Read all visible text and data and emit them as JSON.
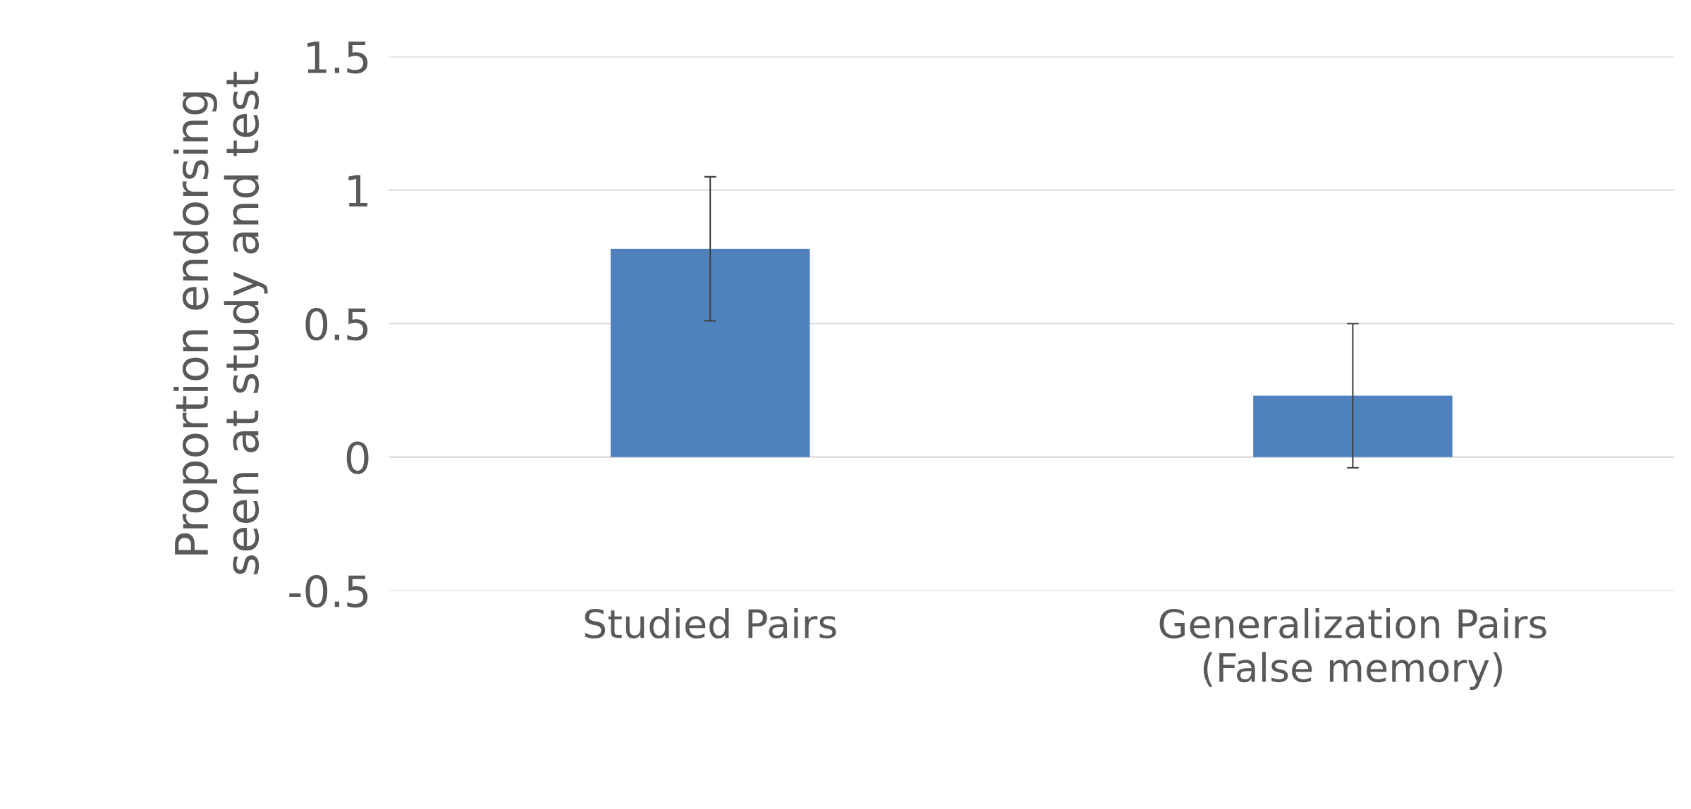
{
  "chart_data": {
    "type": "bar",
    "ylabel": "Proportion endorsing\nseen at study and test",
    "categories": [
      "Studied Pairs",
      "Generalization Pairs\n(False memory)"
    ],
    "values": [
      0.78,
      0.23
    ],
    "errors": [
      0.27,
      0.27
    ],
    "color": "#4f81bd",
    "ylim": [
      -0.5,
      1.5
    ],
    "yticks": [
      -0.5,
      0,
      0.5,
      1,
      1.5
    ],
    "grid": "y",
    "legend": false
  }
}
